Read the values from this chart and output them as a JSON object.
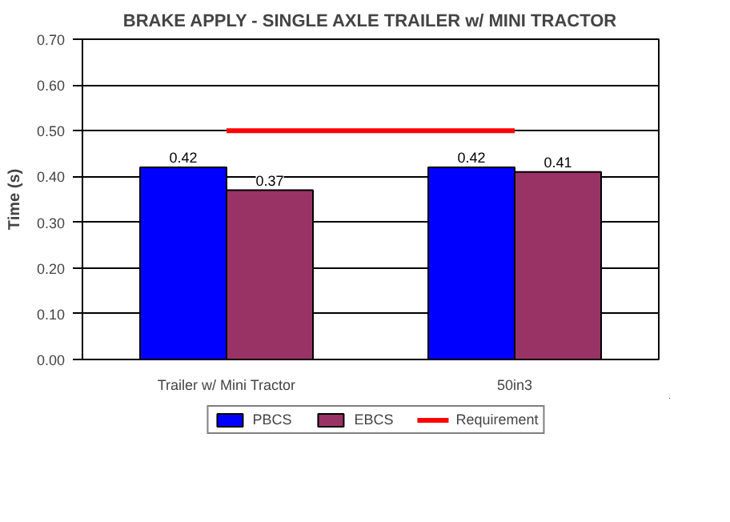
{
  "chart_data": {
    "type": "bar",
    "title": "BRAKE APPLY - SINGLE AXLE TRAILER w/ MINI TRACTOR",
    "ylabel": "Time (s)",
    "categories": [
      "Trailer w/ Mini Tractor",
      "50in3"
    ],
    "series": [
      {
        "name": "PBCS",
        "color": "#0000ff",
        "values": [
          0.42,
          0.42
        ],
        "value_labels": [
          "0.42",
          "0.42"
        ]
      },
      {
        "name": "EBCS",
        "color": "#993366",
        "values": [
          0.37,
          0.41
        ],
        "value_labels": [
          "0.37",
          "0.41"
        ]
      },
      {
        "name": "Requirement",
        "type": "line",
        "color": "#ff0000",
        "values": [
          0.5,
          0.5
        ]
      }
    ],
    "ylim": [
      0,
      0.7
    ],
    "yticks": [
      {
        "value": 0,
        "label": "0.00"
      },
      {
        "value": 0.1,
        "label": "0.10"
      },
      {
        "value": 0.2,
        "label": "0.20"
      },
      {
        "value": 0.3,
        "label": "0.30"
      },
      {
        "value": 0.4,
        "label": "0.40"
      },
      {
        "value": 0.5,
        "label": "0.50"
      },
      {
        "value": 0.6,
        "label": "0.60"
      },
      {
        "value": 0.7,
        "label": "0.70"
      }
    ],
    "grid": "y",
    "legend": "bottom"
  }
}
